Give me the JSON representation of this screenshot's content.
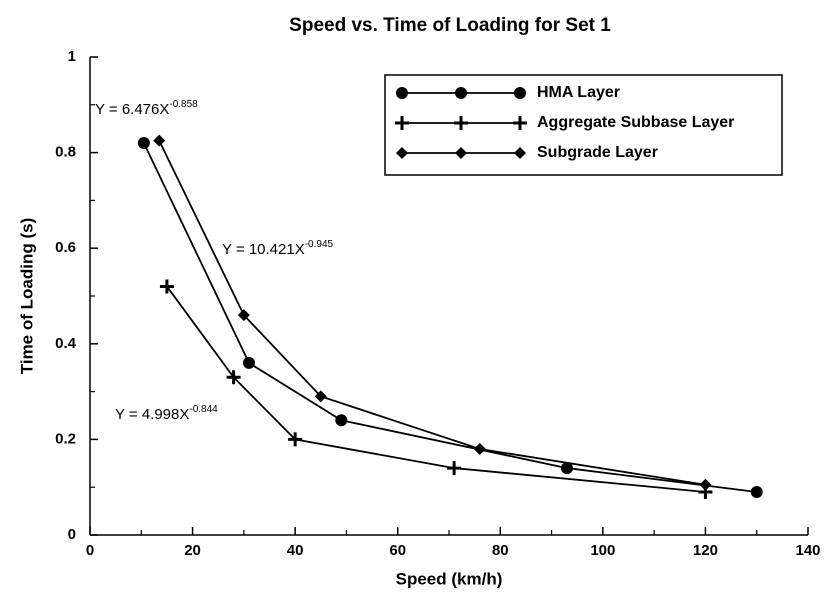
{
  "chart_data": {
    "type": "line",
    "title": "Speed vs. Time of Loading for Set 1",
    "x_label": "Speed (km/h)",
    "y_label": "Time of Loading (s)",
    "xlim": [
      0,
      140
    ],
    "xticks": [
      0,
      20,
      40,
      60,
      80,
      100,
      120,
      140
    ],
    "ylim": [
      0,
      1
    ],
    "yticks": [
      0,
      0.2,
      0.4,
      0.6,
      0.8,
      1
    ],
    "legend": "upper right",
    "series": [
      {
        "name": "HMA Layer",
        "color": "#000000",
        "marker": "circle",
        "x": [
          10.5,
          31,
          49,
          93,
          130
        ],
        "values": [
          0.82,
          0.36,
          0.24,
          0.14,
          0.09
        ]
      },
      {
        "name": "Aggregate Subbase Layer",
        "color": "#000000",
        "marker": "plus",
        "x": [
          15,
          28,
          40,
          71,
          120
        ],
        "values": [
          0.52,
          0.33,
          0.2,
          0.14,
          0.09
        ]
      },
      {
        "name": "Subgrade Layer",
        "color": "#000000",
        "marker": "diamond",
        "x": [
          13.5,
          30,
          45,
          76,
          120
        ],
        "values": [
          0.825,
          0.46,
          0.29,
          0.18,
          0.105
        ]
      }
    ],
    "annotations": [
      {
        "text": "Y = 6.476X",
        "exponent": "-0.858"
      },
      {
        "text": "Y = 10.421X",
        "exponent": "-0.945"
      },
      {
        "text": "Y =  4.998X",
        "exponent": "-0.844"
      }
    ]
  }
}
